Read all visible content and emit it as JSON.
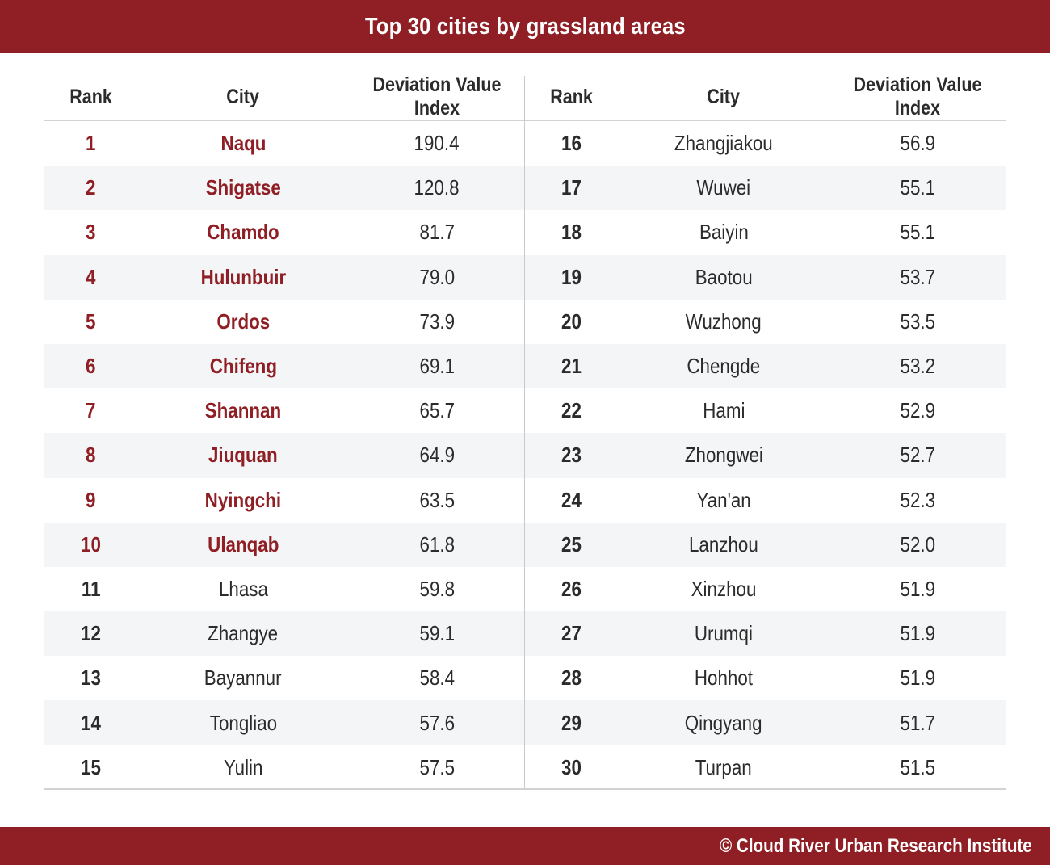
{
  "header": {
    "title": "Top 30 cities by grassland areas"
  },
  "footer": {
    "credit": "© Cloud River Urban Research Institute"
  },
  "colors": {
    "accent": "#8f1f24",
    "stripe": "#f4f5f7",
    "text": "#2b2b2b"
  },
  "chart_data": {
    "type": "table",
    "title": "Top 30 cities by grassland areas",
    "columns": [
      "Rank",
      "City",
      "Deviation Value Index"
    ],
    "highlighted_top_n": 10,
    "rows": [
      {
        "rank": "1",
        "city": "Naqu",
        "value": "190.4"
      },
      {
        "rank": "2",
        "city": "Shigatse",
        "value": "120.8"
      },
      {
        "rank": "3",
        "city": "Chamdo",
        "value": "81.7"
      },
      {
        "rank": "4",
        "city": "Hulunbuir",
        "value": "79.0"
      },
      {
        "rank": "5",
        "city": "Ordos",
        "value": "73.9"
      },
      {
        "rank": "6",
        "city": "Chifeng",
        "value": "69.1"
      },
      {
        "rank": "7",
        "city": "Shannan",
        "value": "65.7"
      },
      {
        "rank": "8",
        "city": "Jiuquan",
        "value": "64.9"
      },
      {
        "rank": "9",
        "city": "Nyingchi",
        "value": "63.5"
      },
      {
        "rank": "10",
        "city": "Ulanqab",
        "value": "61.8"
      },
      {
        "rank": "11",
        "city": "Lhasa",
        "value": "59.8"
      },
      {
        "rank": "12",
        "city": "Zhangye",
        "value": "59.1"
      },
      {
        "rank": "13",
        "city": "Bayannur",
        "value": "58.4"
      },
      {
        "rank": "14",
        "city": "Tongliao",
        "value": "57.6"
      },
      {
        "rank": "15",
        "city": "Yulin",
        "value": "57.5"
      },
      {
        "rank": "16",
        "city": "Zhangjiakou",
        "value": "56.9"
      },
      {
        "rank": "17",
        "city": "Wuwei",
        "value": "55.1"
      },
      {
        "rank": "18",
        "city": "Baiyin",
        "value": "55.1"
      },
      {
        "rank": "19",
        "city": "Baotou",
        "value": "53.7"
      },
      {
        "rank": "20",
        "city": "Wuzhong",
        "value": "53.5"
      },
      {
        "rank": "21",
        "city": "Chengde",
        "value": "53.2"
      },
      {
        "rank": "22",
        "city": "Hami",
        "value": "52.9"
      },
      {
        "rank": "23",
        "city": "Zhongwei",
        "value": "52.7"
      },
      {
        "rank": "24",
        "city": "Yan'an",
        "value": "52.3"
      },
      {
        "rank": "25",
        "city": "Lanzhou",
        "value": "52.0"
      },
      {
        "rank": "26",
        "city": "Xinzhou",
        "value": "51.9"
      },
      {
        "rank": "27",
        "city": "Urumqi",
        "value": "51.9"
      },
      {
        "rank": "28",
        "city": "Hohhot",
        "value": "51.9"
      },
      {
        "rank": "29",
        "city": "Qingyang",
        "value": "51.7"
      },
      {
        "rank": "30",
        "city": "Turpan",
        "value": "51.5"
      }
    ]
  }
}
